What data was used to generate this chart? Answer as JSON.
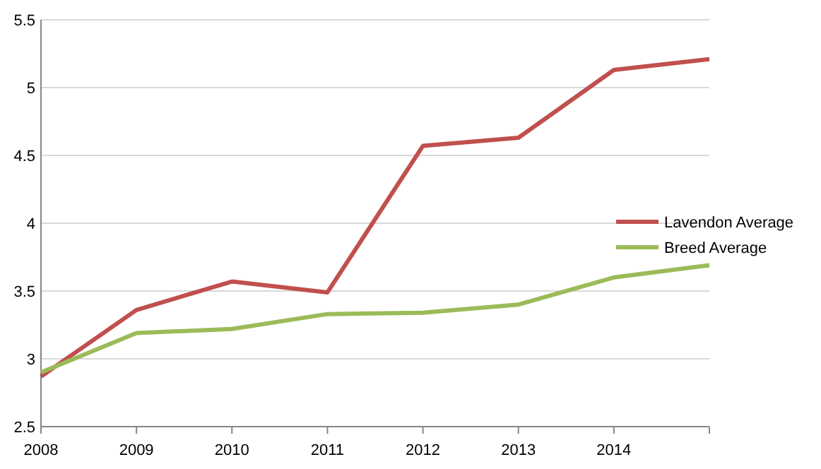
{
  "chart_data": {
    "type": "line",
    "categories": [
      "2008",
      "2009",
      "2010",
      "2011",
      "2012",
      "2013",
      "2014",
      null
    ],
    "series": [
      {
        "name": "Lavendon Average",
        "color": "#c0504d",
        "values": [
          2.87,
          3.36,
          3.57,
          3.49,
          4.57,
          4.63,
          5.13,
          5.21
        ]
      },
      {
        "name": "Breed Average",
        "color": "#9bbb59",
        "values": [
          2.9,
          3.19,
          3.22,
          3.33,
          3.34,
          3.4,
          3.6,
          3.69
        ]
      }
    ],
    "ylim": [
      2.5,
      5.5
    ],
    "yticks": [
      2.5,
      3,
      3.5,
      4,
      4.5,
      5,
      5.5
    ],
    "grid": "y",
    "legend": "right",
    "marker": "none",
    "line_style": "solid"
  }
}
